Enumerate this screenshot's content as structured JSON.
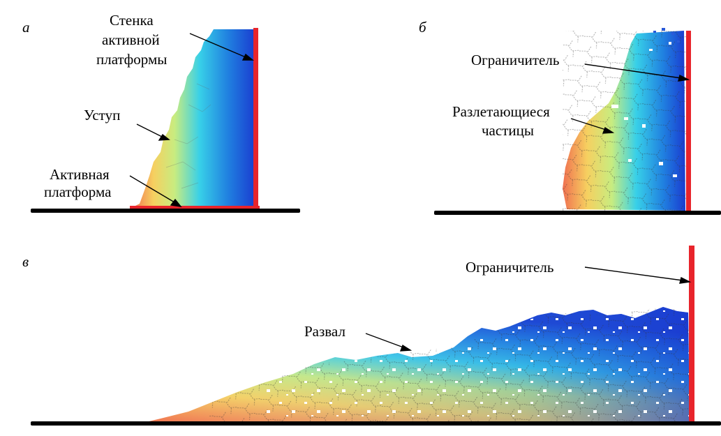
{
  "panels": {
    "a": {
      "letter": "а",
      "labels": {
        "wall": [
          "Стенка",
          "активной",
          "платформы"
        ],
        "ledge": "Уступ",
        "platform": [
          "Активная",
          "платформа"
        ]
      }
    },
    "b": {
      "letter": "б",
      "labels": {
        "limiter": "Ограничитель",
        "particles": [
          "Разлетающиеся",
          "частицы"
        ]
      }
    },
    "c": {
      "letter": "в",
      "labels": {
        "limiter": "Ограничитель",
        "collapse": "Развал"
      }
    }
  },
  "colors": {
    "wall_red": "#e8242b",
    "ground": "#000000",
    "gradient": [
      "#f07050",
      "#f6d060",
      "#c8ec80",
      "#38d0e8",
      "#2080e0",
      "#1a3cd0"
    ]
  }
}
